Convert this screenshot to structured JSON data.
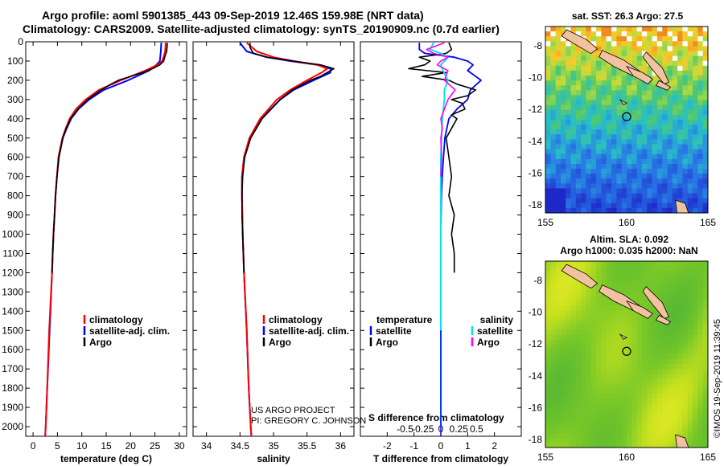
{
  "header": {
    "title_line1": "Argo profile: aoml 5901385_443 09-Sep-2019 12.46S 159.98E (NRT data)",
    "title_line2": "Climatology: CARS2009. Satellite-adjusted climatology: synTS_20190909.nc (0.7d earlier)"
  },
  "credits": {
    "project": "US ARGO PROJECT",
    "pi": "PI: GREGORY C. JOHNSON"
  },
  "vertical_label": "©IMOS 19-Sep-2019 11:39:45",
  "colors": {
    "climatology": "#ff0000",
    "satellite": "#0000ff",
    "argo": "#000000",
    "sal_satellite": "#00e5ee",
    "sal_argo": "#ff00ff"
  },
  "chart_data": [
    {
      "id": "temperature",
      "type": "line",
      "xlabel": "temperature (deg C)",
      "ylabel": "",
      "xlim": [
        -1.5,
        31.5
      ],
      "ylim": [
        2050,
        0
      ],
      "x_ticks": [
        0,
        5,
        10,
        15,
        20,
        25,
        30
      ],
      "y_ticks": [
        0,
        100,
        200,
        300,
        400,
        500,
        600,
        700,
        800,
        900,
        1000,
        1100,
        1200,
        1300,
        1400,
        1500,
        1600,
        1700,
        1800,
        1900,
        2000
      ],
      "legend": [
        "climatology",
        "satellite-adj. clim.",
        "Argo"
      ],
      "series": [
        {
          "name": "climatology",
          "depth": [
            5,
            50,
            100,
            120,
            150,
            200,
            250,
            300,
            350,
            400,
            450,
            500,
            600,
            700,
            800,
            900,
            1000,
            1200,
            1500,
            1800,
            2000,
            2050
          ],
          "values": [
            27.2,
            27.1,
            26.5,
            25.5,
            23.0,
            18.0,
            13.5,
            10.8,
            8.8,
            7.5,
            6.7,
            6.0,
            5.2,
            4.9,
            4.6,
            4.4,
            4.2,
            3.9,
            3.3,
            2.9,
            2.6,
            2.5
          ]
        },
        {
          "name": "satellite-adj. clim.",
          "depth": [
            5,
            50,
            100,
            120,
            150,
            200,
            250,
            300,
            350,
            400,
            450,
            500,
            600,
            700,
            800,
            900,
            1000,
            1200,
            1500,
            1800,
            2000,
            2050
          ],
          "values": [
            26.3,
            26.2,
            26.0,
            25.3,
            23.8,
            19.5,
            14.5,
            11.5,
            9.3,
            7.8,
            6.9,
            6.1,
            5.3,
            4.9,
            4.6,
            4.4,
            4.2,
            3.9,
            3.4,
            2.9,
            2.6,
            2.5
          ]
        },
        {
          "name": "Argo",
          "depth": [
            5,
            20,
            50,
            80,
            100,
            120,
            140,
            160,
            180,
            200,
            220,
            250,
            280,
            300,
            350,
            400,
            450,
            500,
            600,
            700,
            800,
            900,
            1000,
            1100,
            1200
          ],
          "values": [
            27.5,
            27.5,
            27.4,
            27.0,
            26.8,
            26.0,
            24.5,
            22.5,
            20.0,
            17.5,
            16.0,
            14.0,
            12.3,
            11.2,
            9.2,
            7.7,
            6.8,
            6.1,
            5.3,
            4.9,
            4.6,
            4.4,
            4.2,
            4.0,
            3.9
          ]
        }
      ]
    },
    {
      "id": "salinity",
      "type": "line",
      "xlabel": "salinity",
      "ylabel": "",
      "xlim": [
        33.8,
        36.2
      ],
      "ylim": [
        2050,
        0
      ],
      "x_ticks": [
        34,
        34.5,
        35,
        35.5,
        36
      ],
      "x_tick_labels": [
        "34",
        "34.5",
        "35",
        "35.5",
        "36"
      ],
      "legend": [
        "climatology",
        "satellite-adj. clim.",
        "Argo"
      ],
      "credit_lines": [
        "US ARGO PROJECT",
        "PI: GREGORY C. JOHNSON"
      ],
      "series": [
        {
          "name": "climatology",
          "depth": [
            5,
            50,
            80,
            100,
            120,
            140,
            160,
            200,
            250,
            300,
            400,
            500,
            600,
            700,
            800,
            1000,
            1200,
            1500,
            1800,
            2000,
            2050
          ],
          "values": [
            34.6,
            34.75,
            35.0,
            35.3,
            35.65,
            35.8,
            35.72,
            35.5,
            35.25,
            35.05,
            34.8,
            34.64,
            34.56,
            34.53,
            34.53,
            34.54,
            34.56,
            34.6,
            34.63,
            34.66,
            34.67
          ]
        },
        {
          "name": "satellite-adj. clim.",
          "depth": [
            5,
            50,
            80,
            100,
            120,
            140,
            160,
            200,
            250,
            300,
            400,
            500,
            600,
            700,
            800,
            1000,
            1200,
            1500,
            1800,
            2000,
            2050
          ],
          "values": [
            34.5,
            34.6,
            34.9,
            35.25,
            35.65,
            35.85,
            35.85,
            35.6,
            35.3,
            35.1,
            34.82,
            34.65,
            34.56,
            34.53,
            34.53,
            34.54,
            34.56,
            34.6,
            34.63,
            34.66,
            34.67
          ]
        },
        {
          "name": "Argo",
          "depth": [
            5,
            30,
            60,
            80,
            100,
            120,
            140,
            160,
            180,
            200,
            250,
            300,
            400,
            500,
            600,
            700,
            800,
            900,
            1000,
            1100,
            1200
          ],
          "values": [
            34.65,
            34.65,
            34.7,
            34.9,
            35.3,
            35.7,
            35.9,
            35.8,
            35.7,
            35.55,
            35.28,
            35.1,
            34.83,
            34.66,
            34.57,
            34.54,
            34.53,
            34.53,
            34.54,
            34.55,
            34.56
          ]
        }
      ]
    },
    {
      "id": "differences",
      "type": "line",
      "xlabel": "T difference from climatology",
      "top_label": "S difference from climatology",
      "xlim": [
        -3.0,
        3.0
      ],
      "ylim": [
        2050,
        0
      ],
      "x_ticks": [
        -2,
        -1,
        0,
        1,
        2
      ],
      "s_ticks": [
        -0.5,
        -0.25,
        0,
        0.25,
        0.5
      ],
      "s_tick_labels": [
        "-0.5",
        "-0.25",
        "0",
        "0.25",
        "0.5"
      ],
      "s_scale": 0.25,
      "legend_temperature": {
        "heading": "temperature",
        "items": [
          "satellite",
          "Argo"
        ]
      },
      "legend_salinity": {
        "heading": "salinity",
        "items": [
          "satellite",
          "Argo"
        ]
      },
      "series": [
        {
          "name": "T satellite",
          "depth": [
            5,
            40,
            60,
            80,
            100,
            120,
            150,
            200,
            250,
            300,
            350,
            400,
            500,
            600,
            700,
            800,
            1000,
            1500,
            2000
          ],
          "values": [
            -0.8,
            -0.8,
            -0.6,
            0.5,
            1.0,
            1.2,
            1.0,
            1.5,
            1.1,
            1.0,
            0.6,
            0.3,
            0.15,
            0.1,
            0.05,
            0.02,
            0.0,
            0.0,
            0.0
          ]
        },
        {
          "name": "T Argo",
          "depth": [
            5,
            40,
            60,
            80,
            100,
            120,
            140,
            160,
            180,
            200,
            220,
            250,
            280,
            300,
            320,
            350,
            380,
            400,
            450,
            500,
            600,
            700,
            800,
            900,
            1000,
            1100,
            1200
          ],
          "values": [
            0.3,
            0.4,
            0.2,
            -0.8,
            -0.4,
            -0.6,
            -1.2,
            0.2,
            -0.7,
            0.3,
            0.6,
            1.3,
            1.0,
            0.4,
            0.8,
            0.9,
            0.4,
            0.6,
            0.4,
            0.2,
            0.3,
            0.4,
            0.3,
            0.5,
            0.4,
            0.5,
            0.5
          ]
        },
        {
          "name": "S satellite",
          "depth": [
            5,
            40,
            60,
            80,
            100,
            120,
            150,
            200,
            250,
            300,
            400,
            500,
            600,
            700,
            800,
            1000,
            1500,
            2000
          ],
          "values": [
            -0.1,
            -0.15,
            0.0,
            0.1,
            0.05,
            0.0,
            0.03,
            0.1,
            0.05,
            0.05,
            0.02,
            0.01,
            0.0,
            0.0,
            0.0,
            0.0,
            0.0,
            0.0
          ]
        },
        {
          "name": "S Argo",
          "depth": [
            5,
            40,
            60,
            80,
            100,
            120,
            150,
            200,
            250,
            300,
            350,
            400,
            450,
            500,
            600,
            700
          ],
          "values": [
            0.05,
            -0.2,
            -0.1,
            0.1,
            0.0,
            -0.05,
            0.1,
            0.05,
            0.2,
            0.1,
            0.05,
            0.0,
            0.02,
            0.0,
            0.01,
            0.0
          ]
        }
      ]
    },
    {
      "id": "sst_map",
      "type": "heatmap",
      "title": "sat. SST: 26.3 Argo: 27.5",
      "x_ticks": [
        155,
        160,
        165
      ],
      "y_ticks": [
        -8,
        -10,
        -12,
        -14,
        -16,
        -18
      ],
      "xlim": [
        155,
        165
      ],
      "ylim": [
        -18.5,
        -6.8
      ],
      "float_position": [
        160.0,
        -12.46
      ]
    },
    {
      "id": "sla_map",
      "type": "heatmap",
      "title_line1": "Altim. SLA: 0.092",
      "title_line2": "Argo h1000: 0.035 h2000: NaN",
      "x_ticks": [
        155,
        160,
        165
      ],
      "y_ticks": [
        -8,
        -10,
        -12,
        -14,
        -16,
        -18
      ],
      "xlim": [
        155,
        165
      ],
      "ylim": [
        -18.5,
        -6.8
      ],
      "float_position": [
        160.0,
        -12.46
      ]
    }
  ]
}
